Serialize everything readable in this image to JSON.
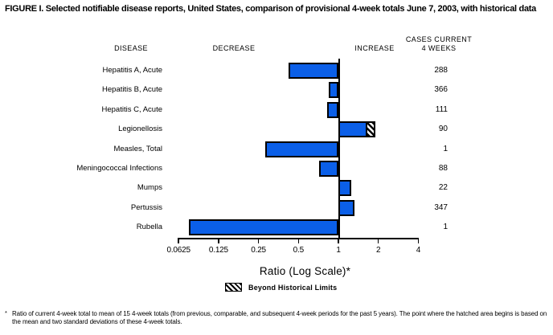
{
  "title": "FIGURE I. Selected notifiable disease reports, United States, comparison of provisional 4-week totals June 7, 2003, with historical data",
  "headers": {
    "disease": "DISEASE",
    "decrease": "DECREASE",
    "increase": "INCREASE",
    "cases_line1": "CASES CURRENT",
    "cases_line2": "4 WEEKS"
  },
  "chart_data": {
    "type": "bar",
    "orientation": "horizontal",
    "scale": "log2",
    "baseline_ratio": 1,
    "xlabel": "Ratio (Log Scale)*",
    "axis_ticks": [
      0.0625,
      0.125,
      0.25,
      0.5,
      1,
      2,
      4
    ],
    "axis_tick_labels": [
      "0.0625",
      "0.125",
      "0.25",
      "0.5",
      "1",
      "2",
      "4"
    ],
    "xlim": [
      0.0625,
      4
    ],
    "bar_color": "#0b5fe8",
    "rows": [
      {
        "disease": "Hepatitis A, Acute",
        "ratio": 0.42,
        "cases": "288",
        "beyond_limits": false
      },
      {
        "disease": "Hepatitis B, Acute",
        "ratio": 0.85,
        "cases": "366",
        "beyond_limits": false
      },
      {
        "disease": "Hepatitis C, Acute",
        "ratio": 0.82,
        "cases": "111",
        "beyond_limits": false
      },
      {
        "disease": "Legionellosis",
        "ratio": 1.9,
        "cases": "90",
        "beyond_limits": true,
        "hatch_start": 1.65
      },
      {
        "disease": "Measles, Total",
        "ratio": 0.28,
        "cases": "1",
        "beyond_limits": false
      },
      {
        "disease": "Meningococcal Infections",
        "ratio": 0.72,
        "cases": "88",
        "beyond_limits": false
      },
      {
        "disease": "Mumps",
        "ratio": 1.25,
        "cases": "22",
        "beyond_limits": false
      },
      {
        "disease": "Pertussis",
        "ratio": 1.32,
        "cases": "347",
        "beyond_limits": false
      },
      {
        "disease": "Rubella",
        "ratio": 0.075,
        "cases": "1",
        "beyond_limits": false
      }
    ],
    "legend": {
      "label": "Beyond Historical Limits",
      "swatch": "diagonal-hatch"
    }
  },
  "footnote": {
    "marker": "*",
    "text": "Ratio of current 4-week total to mean of 15 4-week totals (from previous, comparable, and subsequent 4-week periods for the past 5 years). The point where the hatched area begins is based on the mean and two standard deviations of these 4-week totals."
  }
}
